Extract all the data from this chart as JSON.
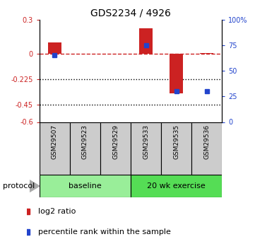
{
  "title": "GDS2234 / 4926",
  "samples": [
    "GSM29507",
    "GSM29523",
    "GSM29529",
    "GSM29533",
    "GSM29535",
    "GSM29536"
  ],
  "log2_ratio": [
    0.1,
    0.0,
    0.0,
    0.22,
    -0.35,
    0.005
  ],
  "percentile_rank": [
    65,
    null,
    null,
    75,
    30,
    30
  ],
  "ylim_left": [
    -0.6,
    0.3
  ],
  "yticks_left_vals": [
    0.3,
    0.0,
    -0.225,
    -0.45,
    -0.6
  ],
  "ytick_labels_left": [
    "0.3",
    "0",
    "-0.225",
    "-0.45",
    "-0.6"
  ],
  "yticks_right_vals": [
    100,
    75,
    50,
    25,
    0
  ],
  "ytick_labels_right": [
    "100%",
    "75",
    "50",
    "25",
    "0"
  ],
  "bar_color": "#cc2222",
  "dot_color": "#2244cc",
  "bar_width": 0.45,
  "protocol_groups": [
    {
      "label": "baseline",
      "start": 0,
      "end": 3,
      "color": "#99ee99"
    },
    {
      "label": "20 wk exercise",
      "start": 3,
      "end": 6,
      "color": "#55dd55"
    }
  ],
  "legend_red_label": "log2 ratio",
  "legend_blue_label": "percentile rank within the sample",
  "protocol_label": "protocol"
}
